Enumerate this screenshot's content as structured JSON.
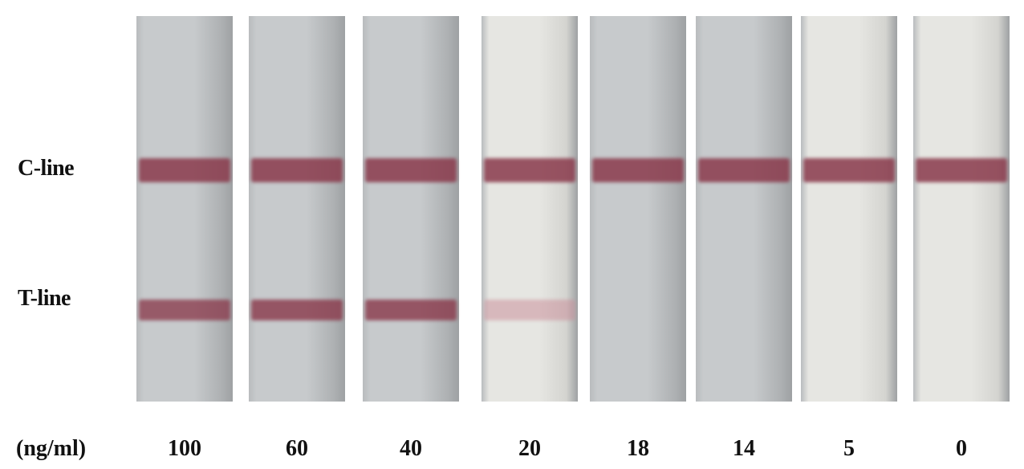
{
  "labels": {
    "control_line": "C-line",
    "test_line": "T-line",
    "unit": "(ng/ml)"
  },
  "strips": [
    {
      "concentration": "100",
      "tone": "gray",
      "t_line_intensity": 0.75
    },
    {
      "concentration": "60",
      "tone": "gray",
      "t_line_intensity": 0.8
    },
    {
      "concentration": "40",
      "tone": "gray",
      "t_line_intensity": 0.8
    },
    {
      "concentration": "20",
      "tone": "white",
      "t_line_intensity": 0.35
    },
    {
      "concentration": "18",
      "tone": "gray",
      "t_line_intensity": 0
    },
    {
      "concentration": "14",
      "tone": "gray",
      "t_line_intensity": 0
    },
    {
      "concentration": "5",
      "tone": "white",
      "t_line_intensity": 0
    },
    {
      "concentration": "0",
      "tone": "white",
      "t_line_intensity": 0
    }
  ],
  "colors": {
    "band": "#8a3a4c",
    "band_light": "#c98a96",
    "strip_gray": "#c7cacc",
    "strip_white": "#e6e6e2"
  }
}
